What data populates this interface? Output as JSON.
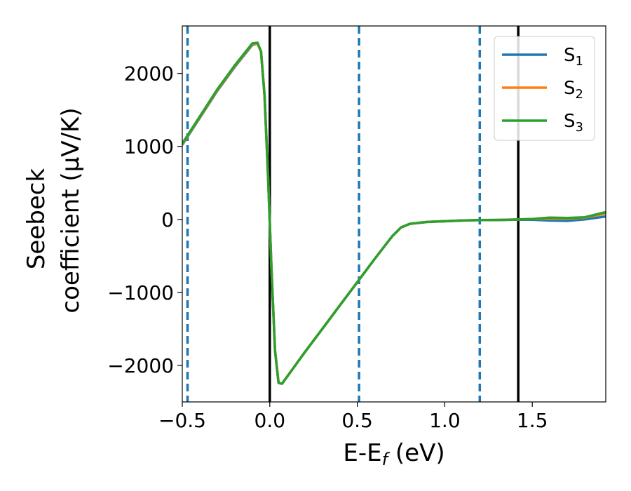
{
  "chart_data": {
    "type": "line",
    "xlabel_parts": {
      "base": "E-E",
      "sub": "f",
      "tail": " (eV)"
    },
    "ylabel_lines": [
      "Seebeck",
      "coefficient  (μV/K)"
    ],
    "xlim": [
      -0.5,
      1.92
    ],
    "ylim": [
      -2500,
      2650
    ],
    "x_ticks": [
      -0.5,
      0.0,
      0.5,
      1.0,
      1.5
    ],
    "x_tick_labels": [
      "−0.5",
      "0.0",
      "0.5",
      "1.0",
      "1.5"
    ],
    "y_ticks": [
      -2000,
      -1000,
      0,
      1000,
      2000
    ],
    "y_tick_labels": [
      "−2000",
      "−1000",
      "0",
      "1000",
      "2000"
    ],
    "grid": false,
    "legend_position": "top-right",
    "vlines_solid": [
      0.0,
      1.42
    ],
    "vlines_dashed": [
      -0.47,
      0.51,
      1.2
    ],
    "vline_solid_color": "#000000",
    "vline_dashed_color": "#1f77b4",
    "series": [
      {
        "name": "S",
        "name_sub": "1",
        "color": "#1f77b4",
        "points": [
          [
            -0.5,
            1020
          ],
          [
            -0.4,
            1390
          ],
          [
            -0.3,
            1760
          ],
          [
            -0.2,
            2090
          ],
          [
            -0.1,
            2390
          ],
          [
            -0.07,
            2410
          ],
          [
            -0.05,
            2300
          ],
          [
            -0.03,
            1700
          ],
          [
            -0.01,
            600
          ],
          [
            0.01,
            -700
          ],
          [
            0.03,
            -1800
          ],
          [
            0.05,
            -2240
          ],
          [
            0.07,
            -2250
          ],
          [
            0.1,
            -2150
          ],
          [
            0.2,
            -1820
          ],
          [
            0.3,
            -1500
          ],
          [
            0.4,
            -1180
          ],
          [
            0.5,
            -860
          ],
          [
            0.6,
            -540
          ],
          [
            0.7,
            -230
          ],
          [
            0.75,
            -110
          ],
          [
            0.8,
            -60
          ],
          [
            0.9,
            -35
          ],
          [
            1.0,
            -25
          ],
          [
            1.1,
            -15
          ],
          [
            1.2,
            -10
          ],
          [
            1.3,
            -8
          ],
          [
            1.4,
            -5
          ],
          [
            1.5,
            -5
          ],
          [
            1.6,
            -15
          ],
          [
            1.7,
            -20
          ],
          [
            1.8,
            0
          ],
          [
            1.92,
            40
          ]
        ]
      },
      {
        "name": "S",
        "name_sub": "2",
        "color": "#ff7f0e",
        "points": [
          [
            -0.5,
            1030
          ],
          [
            -0.4,
            1400
          ],
          [
            -0.3,
            1770
          ],
          [
            -0.2,
            2100
          ],
          [
            -0.1,
            2400
          ],
          [
            -0.07,
            2410
          ],
          [
            -0.05,
            2300
          ],
          [
            -0.03,
            1700
          ],
          [
            -0.01,
            600
          ],
          [
            0.01,
            -700
          ],
          [
            0.03,
            -1800
          ],
          [
            0.05,
            -2240
          ],
          [
            0.07,
            -2250
          ],
          [
            0.1,
            -2150
          ],
          [
            0.2,
            -1820
          ],
          [
            0.3,
            -1500
          ],
          [
            0.4,
            -1180
          ],
          [
            0.5,
            -860
          ],
          [
            0.6,
            -540
          ],
          [
            0.7,
            -230
          ],
          [
            0.75,
            -110
          ],
          [
            0.8,
            -60
          ],
          [
            0.9,
            -35
          ],
          [
            1.0,
            -25
          ],
          [
            1.1,
            -15
          ],
          [
            1.2,
            -10
          ],
          [
            1.3,
            -8
          ],
          [
            1.4,
            -2
          ],
          [
            1.5,
            5
          ],
          [
            1.6,
            10
          ],
          [
            1.7,
            10
          ],
          [
            1.8,
            25
          ],
          [
            1.92,
            80
          ]
        ]
      },
      {
        "name": "S",
        "name_sub": "3",
        "color": "#2ca02c",
        "points": [
          [
            -0.5,
            1040
          ],
          [
            -0.4,
            1410
          ],
          [
            -0.3,
            1780
          ],
          [
            -0.2,
            2110
          ],
          [
            -0.1,
            2410
          ],
          [
            -0.07,
            2420
          ],
          [
            -0.05,
            2300
          ],
          [
            -0.03,
            1700
          ],
          [
            -0.01,
            600
          ],
          [
            0.01,
            -700
          ],
          [
            0.03,
            -1800
          ],
          [
            0.05,
            -2240
          ],
          [
            0.07,
            -2250
          ],
          [
            0.1,
            -2150
          ],
          [
            0.2,
            -1820
          ],
          [
            0.3,
            -1500
          ],
          [
            0.4,
            -1180
          ],
          [
            0.5,
            -860
          ],
          [
            0.6,
            -540
          ],
          [
            0.7,
            -230
          ],
          [
            0.75,
            -110
          ],
          [
            0.8,
            -60
          ],
          [
            0.9,
            -35
          ],
          [
            1.0,
            -25
          ],
          [
            1.1,
            -15
          ],
          [
            1.2,
            -10
          ],
          [
            1.3,
            -8
          ],
          [
            1.4,
            -2
          ],
          [
            1.5,
            5
          ],
          [
            1.6,
            25
          ],
          [
            1.7,
            20
          ],
          [
            1.8,
            30
          ],
          [
            1.92,
            100
          ]
        ]
      }
    ]
  }
}
